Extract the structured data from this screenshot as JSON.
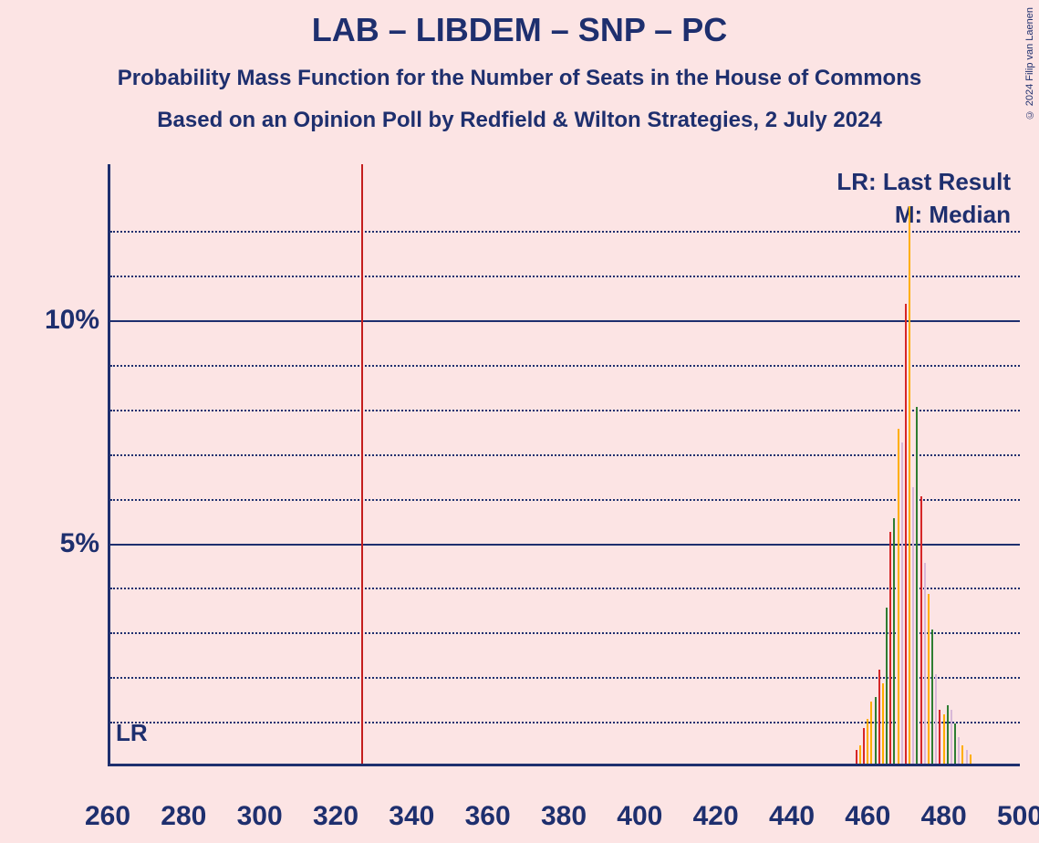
{
  "title": "LAB – LIBDEM – SNP – PC",
  "subtitle1": "Probability Mass Function for the Number of Seats in the House of Commons",
  "subtitle2": "Based on an Opinion Poll by Redfield & Wilton Strategies, 2 July 2024",
  "copyright": "© 2024 Filip van Laenen",
  "legend": {
    "lr_text": "LR: Last Result",
    "m_text": "M: Median"
  },
  "lr_marker_label": "LR",
  "chart": {
    "type": "bar",
    "xlim": [
      260,
      500
    ],
    "ylim": [
      0,
      0.135
    ],
    "x_ticks": [
      260,
      280,
      300,
      320,
      340,
      360,
      380,
      400,
      420,
      440,
      460,
      480,
      500
    ],
    "y_major_ticks": [
      0.05,
      0.1
    ],
    "y_major_labels": [
      "5%",
      "10%"
    ],
    "y_minor_step": 0.01,
    "y_minor_ticks": [
      0.01,
      0.02,
      0.03,
      0.04,
      0.06,
      0.07,
      0.08,
      0.09,
      0.11,
      0.12
    ],
    "lr_line_x": 326,
    "background_color": "#fce4e4",
    "axis_color": "#1e2f6e",
    "lr_line_color": "#c41e1e",
    "title_fontsize": 36,
    "subtitle_fontsize": 24,
    "axis_label_fontsize": 30,
    "annot_fontsize": 26,
    "series_colors": {
      "red": "#d62728",
      "orange": "#ffae00",
      "green": "#2e7d32",
      "lilac": "#d8b8d8"
    },
    "bars": [
      {
        "x": 456,
        "v": 0.003,
        "c": "red"
      },
      {
        "x": 457,
        "v": 0.004,
        "c": "orange"
      },
      {
        "x": 458,
        "v": 0.008,
        "c": "red"
      },
      {
        "x": 459,
        "v": 0.01,
        "c": "orange"
      },
      {
        "x": 460,
        "v": 0.014,
        "c": "orange"
      },
      {
        "x": 461,
        "v": 0.015,
        "c": "green"
      },
      {
        "x": 462,
        "v": 0.021,
        "c": "red"
      },
      {
        "x": 463,
        "v": 0.018,
        "c": "orange"
      },
      {
        "x": 464,
        "v": 0.035,
        "c": "green"
      },
      {
        "x": 465,
        "v": 0.052,
        "c": "red"
      },
      {
        "x": 466,
        "v": 0.055,
        "c": "green"
      },
      {
        "x": 467,
        "v": 0.075,
        "c": "orange"
      },
      {
        "x": 468,
        "v": 0.072,
        "c": "lilac"
      },
      {
        "x": 469,
        "v": 0.103,
        "c": "red"
      },
      {
        "x": 470,
        "v": 0.125,
        "c": "orange"
      },
      {
        "x": 471,
        "v": 0.062,
        "c": "lilac"
      },
      {
        "x": 472,
        "v": 0.08,
        "c": "green"
      },
      {
        "x": 473,
        "v": 0.06,
        "c": "red"
      },
      {
        "x": 474,
        "v": 0.045,
        "c": "lilac"
      },
      {
        "x": 475,
        "v": 0.038,
        "c": "orange"
      },
      {
        "x": 476,
        "v": 0.03,
        "c": "green"
      },
      {
        "x": 477,
        "v": 0.02,
        "c": "lilac"
      },
      {
        "x": 478,
        "v": 0.012,
        "c": "red"
      },
      {
        "x": 479,
        "v": 0.011,
        "c": "orange"
      },
      {
        "x": 480,
        "v": 0.013,
        "c": "green"
      },
      {
        "x": 481,
        "v": 0.012,
        "c": "lilac"
      },
      {
        "x": 482,
        "v": 0.009,
        "c": "green"
      },
      {
        "x": 483,
        "v": 0.006,
        "c": "lilac"
      },
      {
        "x": 484,
        "v": 0.004,
        "c": "orange"
      },
      {
        "x": 485,
        "v": 0.003,
        "c": "lilac"
      },
      {
        "x": 486,
        "v": 0.002,
        "c": "orange"
      }
    ]
  }
}
